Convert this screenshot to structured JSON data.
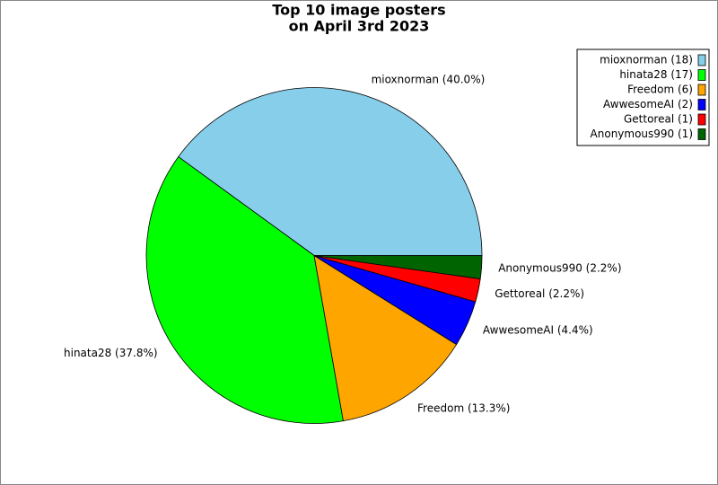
{
  "chart_data": {
    "type": "pie",
    "title": [
      "Top 10 image posters",
      "on April 3rd 2023"
    ],
    "categories": [
      "mioxnorman",
      "hinata28",
      "Freedom",
      "AwwesomeAI",
      "Gettoreal",
      "Anonymous990"
    ],
    "values": [
      18,
      17,
      6,
      2,
      1,
      1
    ],
    "value_labels": [
      "mioxnorman (40.0%)",
      "hinata28 (37.8%)",
      "Freedom (13.3%)",
      "AwwesomeAI (4.4%)",
      "Gettoreal (2.2%)",
      "Anonymous990 (2.2%)"
    ],
    "legend_labels": [
      "mioxnorman (18)",
      "hinata28 (17)",
      "Freedom (6)",
      "AwwesomeAI (2)",
      "Gettoreal (1)",
      "Anonymous990 (1)"
    ],
    "colors": [
      "#87ceeb",
      "#00ff00",
      "#ffa500",
      "#0000ff",
      "#ff0000",
      "#006400"
    ],
    "legend": "upper right"
  }
}
